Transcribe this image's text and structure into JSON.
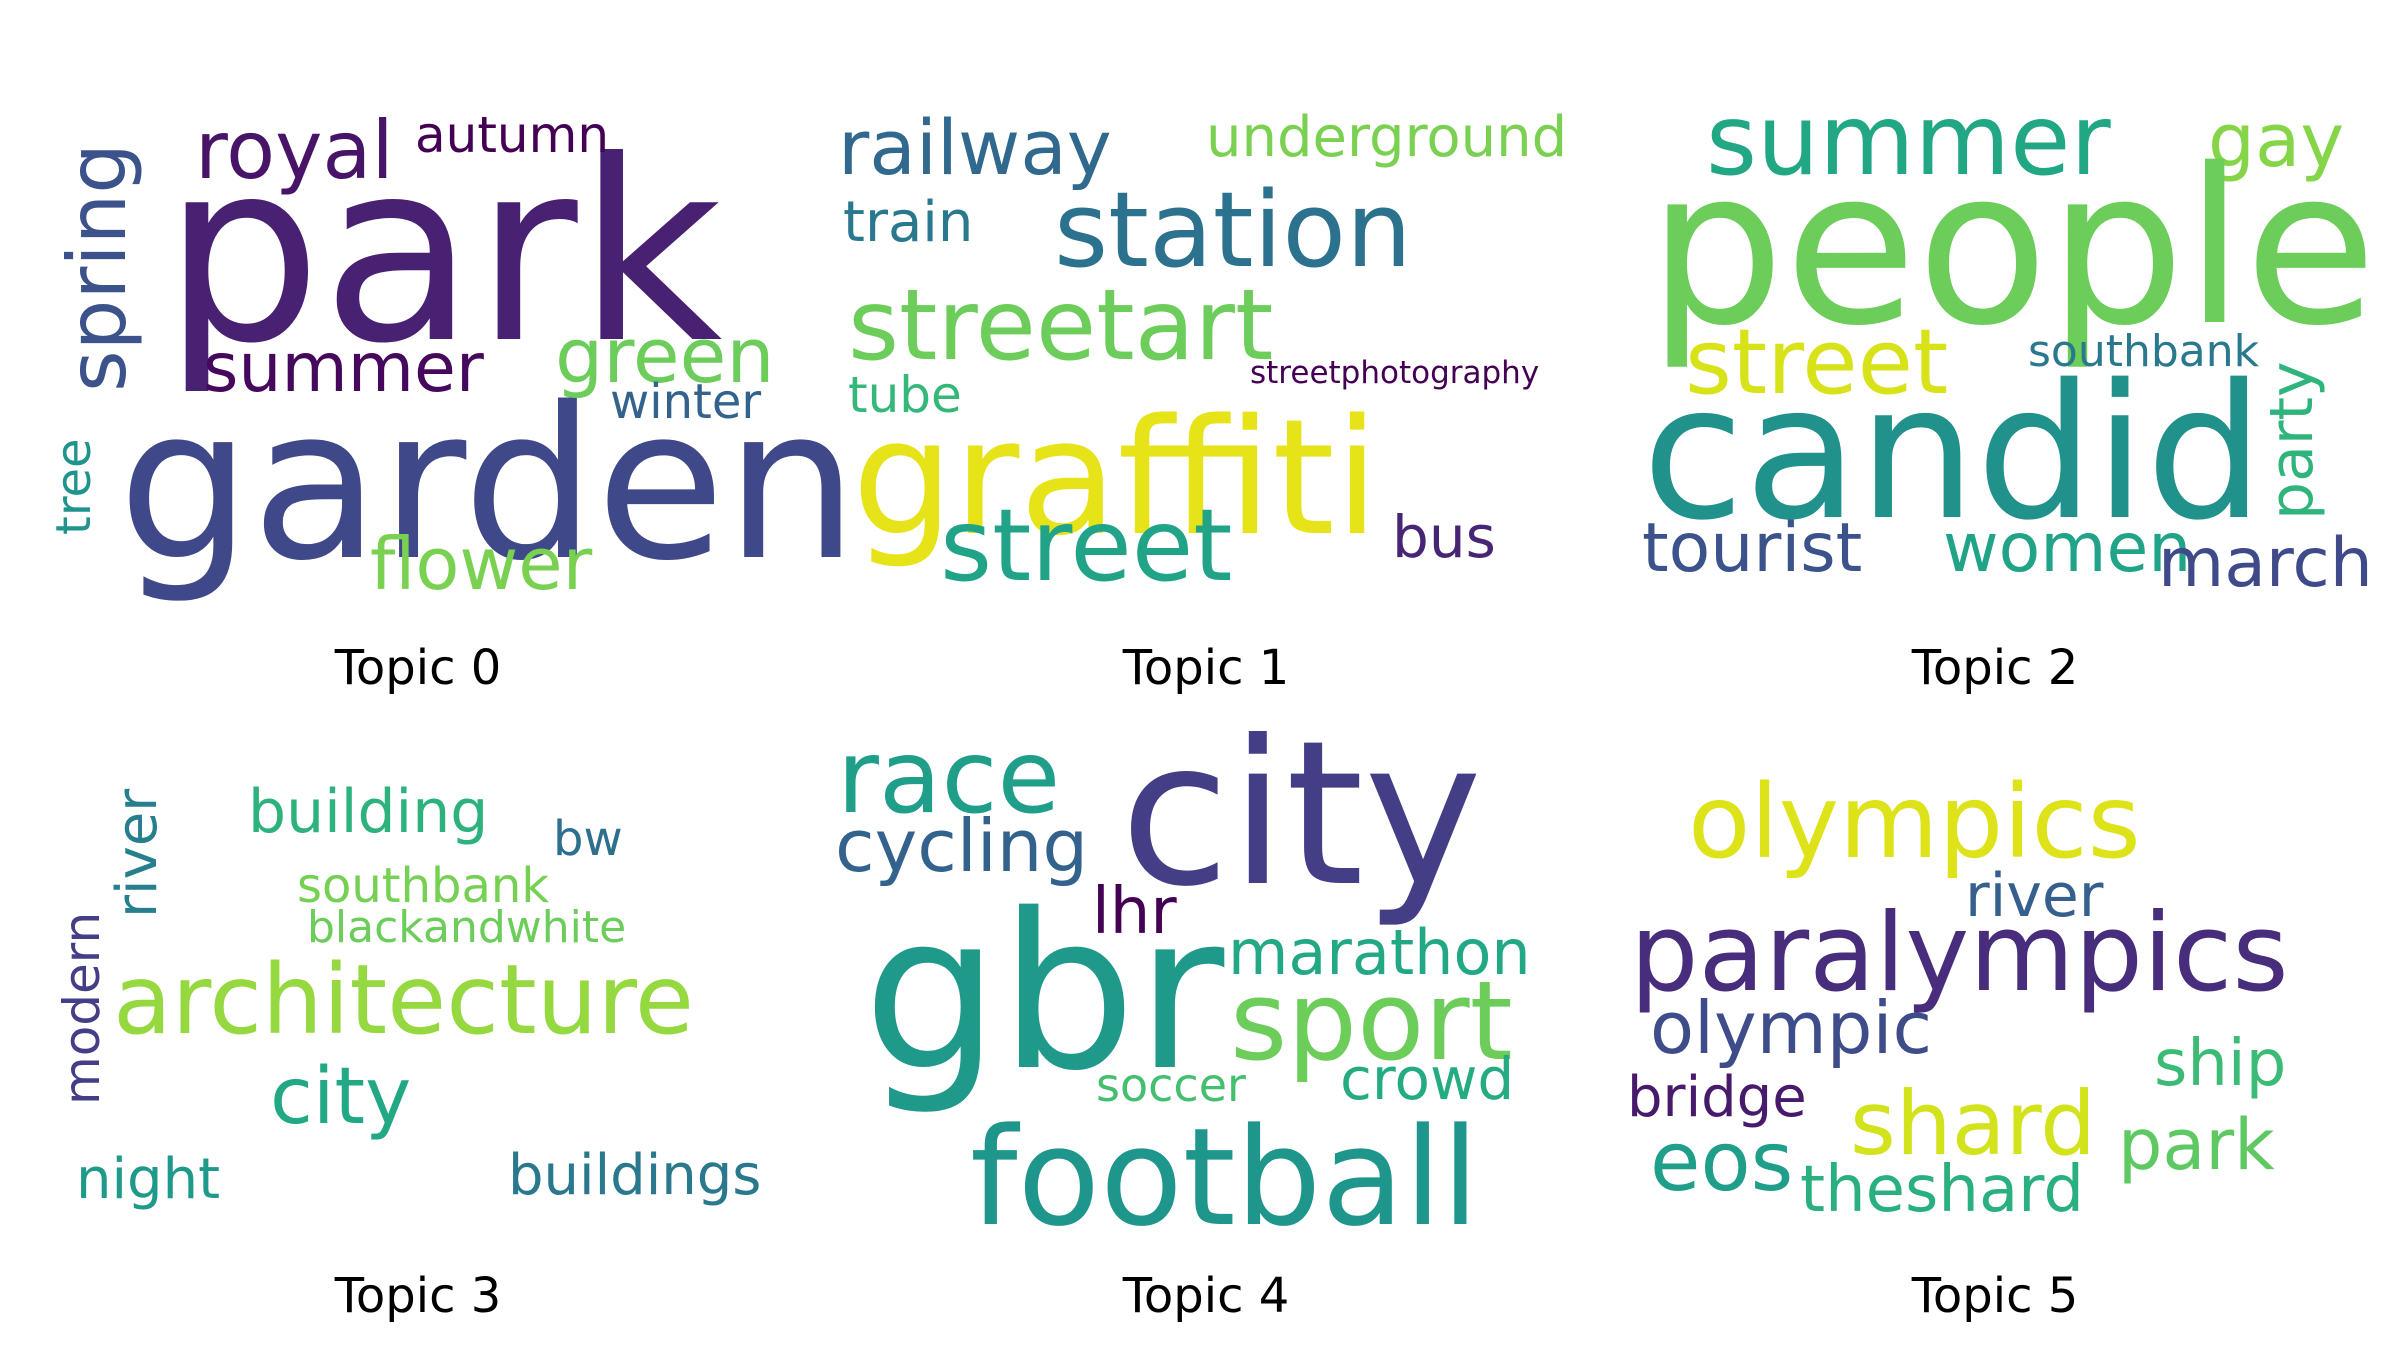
{
  "topics": [
    {
      "caption": "Topic 0",
      "words": [
        {
          "text": "park",
          "color": "#482173",
          "vertical": false
        },
        {
          "text": "garden",
          "color": "#3f4889",
          "vertical": false
        },
        {
          "text": "royal",
          "color": "#481467",
          "vertical": false
        },
        {
          "text": "autumn",
          "color": "#440154",
          "vertical": false
        },
        {
          "text": "spring",
          "color": "#3b528b",
          "vertical": true
        },
        {
          "text": "summer",
          "color": "#46085c",
          "vertical": false
        },
        {
          "text": "green",
          "color": "#6ccd5a",
          "vertical": false
        },
        {
          "text": "winter",
          "color": "#33638d",
          "vertical": false
        },
        {
          "text": "tree",
          "color": "#1f948c",
          "vertical": true
        },
        {
          "text": "flower",
          "color": "#7ad151",
          "vertical": false
        }
      ]
    },
    {
      "caption": "Topic 1",
      "words": [
        {
          "text": "railway",
          "color": "#31688e",
          "vertical": false
        },
        {
          "text": "underground",
          "color": "#7ad151",
          "vertical": false
        },
        {
          "text": "train",
          "color": "#2a788e",
          "vertical": false
        },
        {
          "text": "station",
          "color": "#2c728e",
          "vertical": false
        },
        {
          "text": "streetart",
          "color": "#6ccd5a",
          "vertical": false
        },
        {
          "text": "tube",
          "color": "#35b779",
          "vertical": false
        },
        {
          "text": "streetphotography",
          "color": "#440154",
          "vertical": false
        },
        {
          "text": "graffiti",
          "color": "#e6e419",
          "vertical": false
        },
        {
          "text": "street",
          "color": "#20a386",
          "vertical": false
        },
        {
          "text": "bus",
          "color": "#482475",
          "vertical": false
        }
      ]
    },
    {
      "caption": "Topic 2",
      "words": [
        {
          "text": "summer",
          "color": "#22a785",
          "vertical": false
        },
        {
          "text": "gay",
          "color": "#86d549",
          "vertical": false
        },
        {
          "text": "people",
          "color": "#6ccd5a",
          "vertical": false
        },
        {
          "text": "street",
          "color": "#d8e219",
          "vertical": false
        },
        {
          "text": "southbank",
          "color": "#2a788e",
          "vertical": false
        },
        {
          "text": "party",
          "color": "#2fb47c",
          "vertical": true
        },
        {
          "text": "candid",
          "color": "#21918c",
          "vertical": false
        },
        {
          "text": "tourist",
          "color": "#3b528b",
          "vertical": false
        },
        {
          "text": "women",
          "color": "#20a386",
          "vertical": false
        },
        {
          "text": "march",
          "color": "#3e4a89",
          "vertical": false
        }
      ]
    },
    {
      "caption": "Topic 3",
      "words": [
        {
          "text": "river",
          "color": "#277f8e",
          "vertical": true
        },
        {
          "text": "building",
          "color": "#2db27d",
          "vertical": false
        },
        {
          "text": "bw",
          "color": "#2d708e",
          "vertical": false
        },
        {
          "text": "southbank",
          "color": "#75d054",
          "vertical": false
        },
        {
          "text": "blackandwhite",
          "color": "#6ccd5a",
          "vertical": false
        },
        {
          "text": "modern",
          "color": "#433e85",
          "vertical": true
        },
        {
          "text": "architecture",
          "color": "#95d840",
          "vertical": false
        },
        {
          "text": "city",
          "color": "#22a884",
          "vertical": false
        },
        {
          "text": "night",
          "color": "#1f9a8a",
          "vertical": false
        },
        {
          "text": "buildings",
          "color": "#2a788e",
          "vertical": false
        }
      ]
    },
    {
      "caption": "Topic 4",
      "words": [
        {
          "text": "race",
          "color": "#1f9e89",
          "vertical": false
        },
        {
          "text": "city",
          "color": "#433e85",
          "vertical": false
        },
        {
          "text": "cycling",
          "color": "#33638d",
          "vertical": false
        },
        {
          "text": "lhr",
          "color": "#440154",
          "vertical": false
        },
        {
          "text": "marathon",
          "color": "#22a884",
          "vertical": false
        },
        {
          "text": "gbr",
          "color": "#1f9a8a",
          "vertical": false
        },
        {
          "text": "sport",
          "color": "#6ccd5a",
          "vertical": false
        },
        {
          "text": "soccer",
          "color": "#44bf70",
          "vertical": false
        },
        {
          "text": "crowd",
          "color": "#25ab82",
          "vertical": false
        },
        {
          "text": "football",
          "color": "#1f968b",
          "vertical": false
        }
      ]
    },
    {
      "caption": "Topic 5",
      "words": [
        {
          "text": "olympics",
          "color": "#dde318",
          "vertical": false
        },
        {
          "text": "river",
          "color": "#355f8d",
          "vertical": false
        },
        {
          "text": "paralympics",
          "color": "#472d7b",
          "vertical": false
        },
        {
          "text": "olympic",
          "color": "#3e4c8a",
          "vertical": false
        },
        {
          "text": "ship",
          "color": "#3bbb75",
          "vertical": false
        },
        {
          "text": "bridge",
          "color": "#481a6c",
          "vertical": false
        },
        {
          "text": "shard",
          "color": "#d2e21b",
          "vertical": false
        },
        {
          "text": "park",
          "color": "#5ec962",
          "vertical": false
        },
        {
          "text": "eos",
          "color": "#1f9e89",
          "vertical": false
        },
        {
          "text": "theshard",
          "color": "#2ab07f",
          "vertical": false
        }
      ]
    }
  ]
}
